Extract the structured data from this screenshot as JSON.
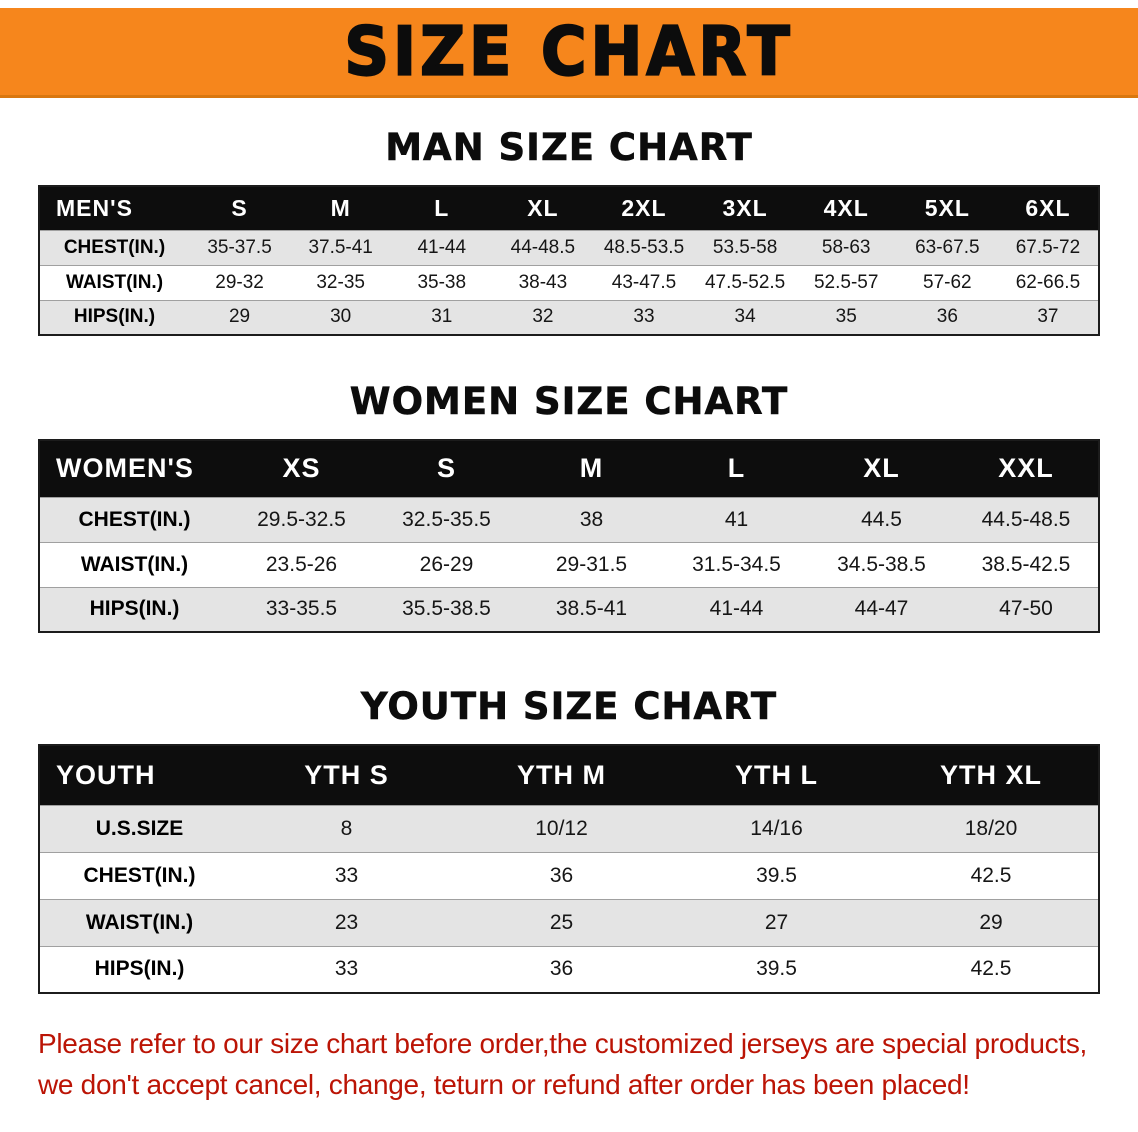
{
  "banner": {
    "title": "SIZE CHART"
  },
  "colors": {
    "banner_bg": "#F6861C",
    "table_header_bg": "#0D0D0D",
    "row_alt_bg": "#E4E4E4",
    "note_text": "#BB1405"
  },
  "chart_data": [
    {
      "type": "table",
      "title": "MAN SIZE CHART",
      "header": [
        "MEN'S",
        "S",
        "M",
        "L",
        "XL",
        "2XL",
        "3XL",
        "4XL",
        "5XL",
        "6XL"
      ],
      "rows": [
        [
          "CHEST(IN.)",
          "35-37.5",
          "37.5-41",
          "41-44",
          "44-48.5",
          "48.5-53.5",
          "53.5-58",
          "58-63",
          "63-67.5",
          "67.5-72"
        ],
        [
          "WAIST(IN.)",
          "29-32",
          "32-35",
          "35-38",
          "38-43",
          "43-47.5",
          "47.5-52.5",
          "52.5-57",
          "57-62",
          "62-66.5"
        ],
        [
          "HIPS(IN.)",
          "29",
          "30",
          "31",
          "32",
          "33",
          "34",
          "35",
          "36",
          "37"
        ]
      ]
    },
    {
      "type": "table",
      "title": "WOMEN SIZE CHART",
      "header": [
        "WOMEN'S",
        "XS",
        "S",
        "M",
        "L",
        "XL",
        "XXL"
      ],
      "rows": [
        [
          "CHEST(IN.)",
          "29.5-32.5",
          "32.5-35.5",
          "38",
          "41",
          "44.5",
          "44.5-48.5"
        ],
        [
          "WAIST(IN.)",
          "23.5-26",
          "26-29",
          "29-31.5",
          "31.5-34.5",
          "34.5-38.5",
          "38.5-42.5"
        ],
        [
          "HIPS(IN.)",
          "33-35.5",
          "35.5-38.5",
          "38.5-41",
          "41-44",
          "44-47",
          "47-50"
        ]
      ]
    },
    {
      "type": "table",
      "title": "YOUTH SIZE CHART",
      "header": [
        "YOUTH",
        "YTH S",
        "YTH M",
        "YTH L",
        "YTH XL"
      ],
      "rows": [
        [
          "U.S.SIZE",
          "8",
          "10/12",
          "14/16",
          "18/20"
        ],
        [
          "CHEST(IN.)",
          "33",
          "36",
          "39.5",
          "42.5"
        ],
        [
          "WAIST(IN.)",
          "23",
          "25",
          "27",
          "29"
        ],
        [
          "HIPS(IN.)",
          "33",
          "36",
          "39.5",
          "42.5"
        ]
      ]
    }
  ],
  "note": {
    "line1": "Please refer to our size chart before order,the customized jerseys are special products,",
    "line2": "we don't accept cancel, change, teturn or refund after order has been placed!"
  }
}
